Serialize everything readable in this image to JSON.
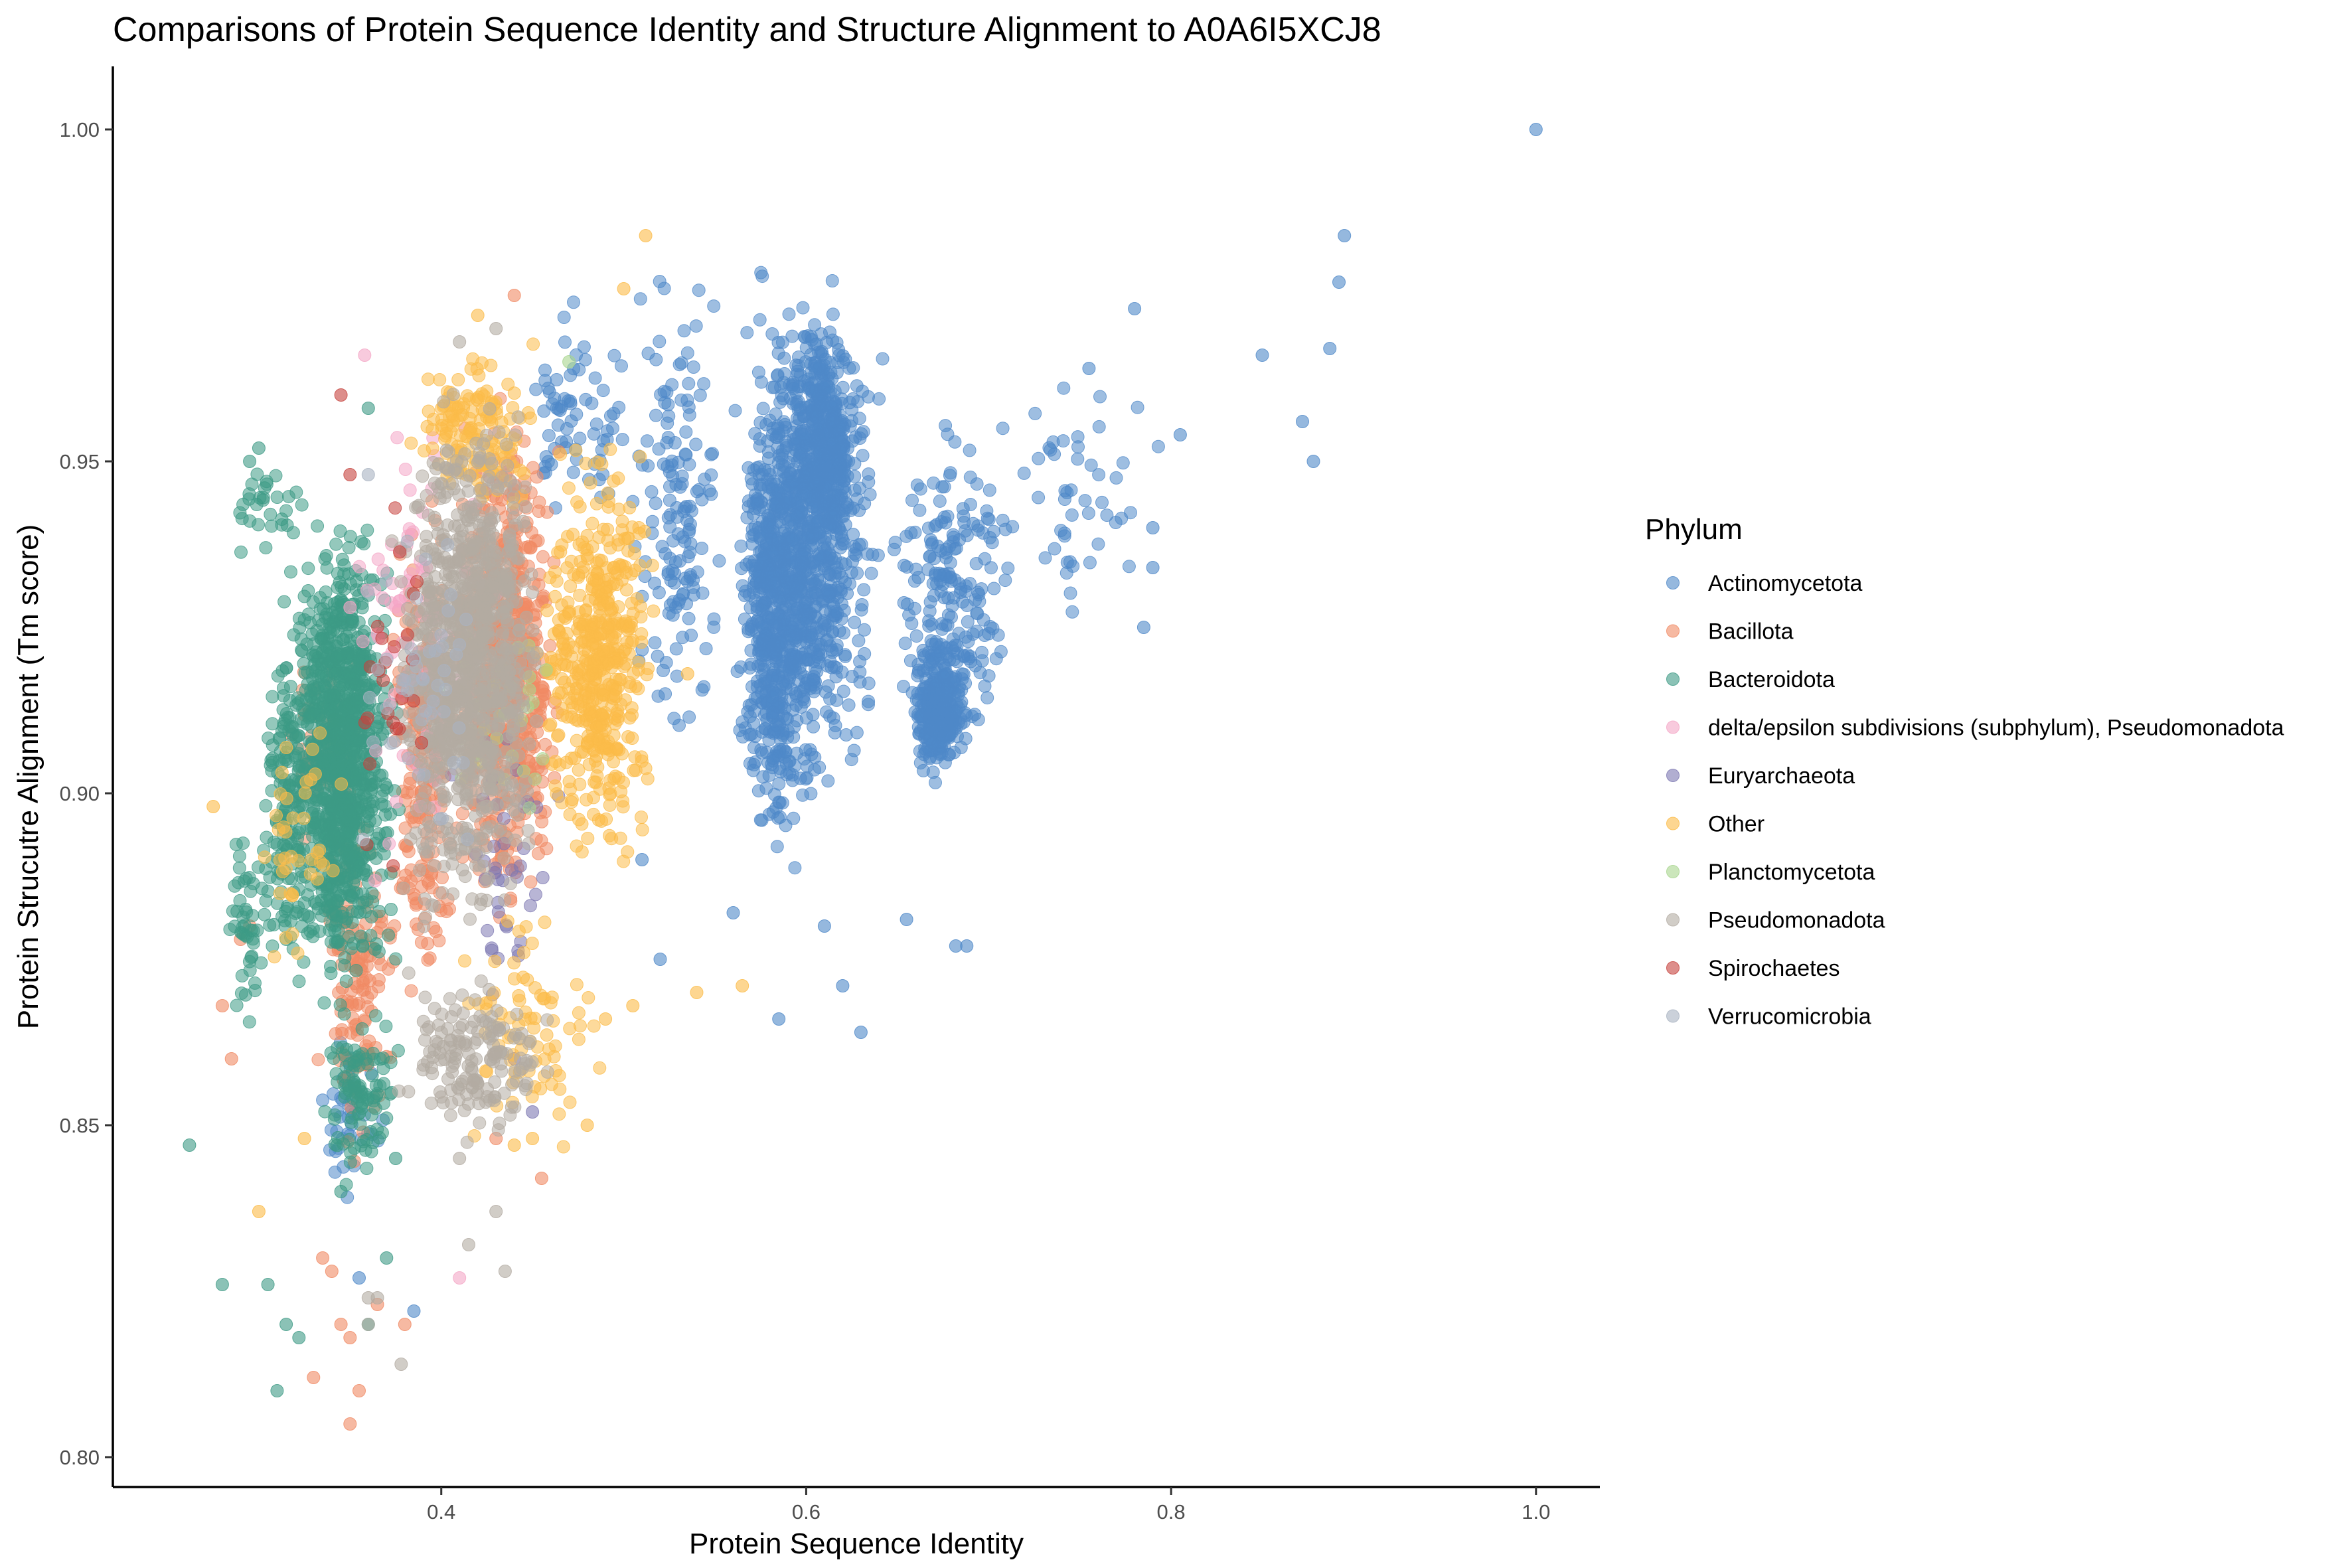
{
  "chart_data": {
    "type": "scatter",
    "title": "Comparisons of Protein Sequence Identity and Structure Alignment to A0A6I5XCJ8",
    "xlabel": "Protein Sequence Identity",
    "ylabel": "Protein Strucutre Alignment (Tm score)",
    "xlim": [
      0.22,
      1.035
    ],
    "ylim": [
      0.7955,
      1.0095
    ],
    "x_ticks": [
      {
        "value": 0.4,
        "label": "0.4"
      },
      {
        "value": 0.6,
        "label": "0.6"
      },
      {
        "value": 0.8,
        "label": "0.8"
      },
      {
        "value": 1.0,
        "label": "1.0"
      }
    ],
    "y_ticks": [
      {
        "value": 0.8,
        "label": "0.80"
      },
      {
        "value": 0.85,
        "label": "0.85"
      },
      {
        "value": 0.9,
        "label": "0.90"
      },
      {
        "value": 0.95,
        "label": "0.95"
      },
      {
        "value": 1.0,
        "label": "1.00"
      }
    ],
    "grid": false,
    "legend": {
      "title": "Phylum",
      "placement": "right"
    },
    "series": [
      {
        "name": "Actinomycetota",
        "color": "#4f88c8",
        "clusters": [
          {
            "x": [
              0.555,
              0.645
            ],
            "y": [
              0.89,
              0.985
            ],
            "n": 900
          },
          {
            "x": [
              0.56,
              0.6
            ],
            "y": [
              0.885,
              0.96
            ],
            "n": 350
          },
          {
            "x": [
              0.59,
              0.63
            ],
            "y": [
              0.93,
              0.975
            ],
            "n": 300
          },
          {
            "x": [
              0.655,
              0.69
            ],
            "y": [
              0.9,
              0.925
            ],
            "n": 300
          },
          {
            "x": [
              0.64,
              0.72
            ],
            "y": [
              0.9,
              0.96
            ],
            "n": 200
          },
          {
            "x": [
              0.5,
              0.56
            ],
            "y": [
              0.9,
              0.985
            ],
            "n": 150
          },
          {
            "x": [
              0.43,
              0.52
            ],
            "y": [
              0.94,
              0.975
            ],
            "n": 70
          },
          {
            "x": [
              0.33,
              0.37
            ],
            "y": [
              0.835,
              0.865
            ],
            "n": 40
          },
          {
            "x": [
              0.7,
              0.8
            ],
            "y": [
              0.92,
              0.97
            ],
            "n": 50
          }
        ],
        "points": [
          [
            1.0,
            1.0
          ],
          [
            0.895,
            0.984
          ],
          [
            0.892,
            0.977
          ],
          [
            0.887,
            0.967
          ],
          [
            0.85,
            0.966
          ],
          [
            0.872,
            0.956
          ],
          [
            0.878,
            0.95
          ],
          [
            0.805,
            0.954
          ],
          [
            0.78,
            0.973
          ],
          [
            0.755,
            0.964
          ],
          [
            0.79,
            0.94
          ],
          [
            0.79,
            0.934
          ],
          [
            0.785,
            0.925
          ],
          [
            0.682,
            0.877
          ],
          [
            0.688,
            0.877
          ],
          [
            0.63,
            0.864
          ],
          [
            0.62,
            0.871
          ],
          [
            0.585,
            0.866
          ],
          [
            0.56,
            0.882
          ],
          [
            0.61,
            0.88
          ],
          [
            0.655,
            0.881
          ],
          [
            0.52,
            0.875
          ],
          [
            0.51,
            0.89
          ],
          [
            0.385,
            0.822
          ],
          [
            0.355,
            0.827
          ]
        ]
      },
      {
        "name": "Bacillota",
        "color": "#f08a64",
        "clusters": [
          {
            "x": [
              0.4,
              0.47
            ],
            "y": [
              0.875,
              0.965
            ],
            "n": 700
          },
          {
            "x": [
              0.37,
              0.41
            ],
            "y": [
              0.86,
              0.95
            ],
            "n": 220
          },
          {
            "x": [
              0.33,
              0.38
            ],
            "y": [
              0.84,
              0.9
            ],
            "n": 140
          },
          {
            "x": [
              0.31,
              0.36
            ],
            "y": [
              0.89,
              0.925
            ],
            "n": 50
          }
        ],
        "points": [
          [
            0.35,
            0.805
          ],
          [
            0.355,
            0.81
          ],
          [
            0.33,
            0.812
          ],
          [
            0.35,
            0.818
          ],
          [
            0.365,
            0.823
          ],
          [
            0.345,
            0.82
          ],
          [
            0.38,
            0.82
          ],
          [
            0.335,
            0.83
          ],
          [
            0.34,
            0.828
          ],
          [
            0.44,
            0.975
          ],
          [
            0.455,
            0.842
          ],
          [
            0.43,
            0.848
          ],
          [
            0.285,
            0.86
          ],
          [
            0.28,
            0.868
          ],
          [
            0.29,
            0.878
          ],
          [
            0.295,
            0.88
          ]
        ]
      },
      {
        "name": "Bacteroidota",
        "color": "#3d9a85",
        "clusters": [
          {
            "x": [
              0.31,
              0.38
            ],
            "y": [
              0.865,
              0.945
            ],
            "n": 1100
          },
          {
            "x": [
              0.3,
              0.33
            ],
            "y": [
              0.87,
              0.93
            ],
            "n": 130
          },
          {
            "x": [
              0.28,
              0.31
            ],
            "y": [
              0.86,
              0.9
            ],
            "n": 50
          },
          {
            "x": [
              0.33,
              0.38
            ],
            "y": [
              0.84,
              0.87
            ],
            "n": 100
          },
          {
            "x": [
              0.28,
              0.33
            ],
            "y": [
              0.935,
              0.95
            ],
            "n": 30
          }
        ],
        "points": [
          [
            0.262,
            0.847
          ],
          [
            0.28,
            0.826
          ],
          [
            0.305,
            0.826
          ],
          [
            0.31,
            0.81
          ],
          [
            0.315,
            0.82
          ],
          [
            0.322,
            0.818
          ],
          [
            0.3,
            0.952
          ],
          [
            0.295,
            0.95
          ],
          [
            0.36,
            0.958
          ],
          [
            0.36,
            0.82
          ],
          [
            0.345,
            0.84
          ],
          [
            0.37,
            0.83
          ],
          [
            0.375,
            0.845
          ]
        ]
      },
      {
        "name": "delta/epsilon subdivisions (subphylum), Pseudomonadota",
        "color": "#f4a6c6",
        "clusters": [
          {
            "x": [
              0.35,
              0.43
            ],
            "y": [
              0.885,
              0.96
            ],
            "n": 90
          }
        ],
        "points": [
          [
            0.358,
            0.966
          ],
          [
            0.41,
            0.827
          ],
          [
            0.35,
            0.928
          ],
          [
            0.43,
            0.93
          ]
        ]
      },
      {
        "name": "Euryarchaeota",
        "color": "#7d78b2",
        "clusters": [
          {
            "x": [
              0.4,
              0.47
            ],
            "y": [
              0.86,
              0.92
            ],
            "n": 40
          }
        ],
        "points": [
          [
            0.45,
            0.852
          ],
          [
            0.44,
            0.86
          ]
        ]
      },
      {
        "name": "Other",
        "color": "#fbbb48",
        "clusters": [
          {
            "x": [
              0.45,
              0.52
            ],
            "y": [
              0.885,
              0.955
            ],
            "n": 500
          },
          {
            "x": [
              0.38,
              0.46
            ],
            "y": [
              0.94,
              0.97
            ],
            "n": 150
          },
          {
            "x": [
              0.4,
              0.5
            ],
            "y": [
              0.845,
              0.885
            ],
            "n": 80
          },
          {
            "x": [
              0.29,
              0.35
            ],
            "y": [
              0.86,
              0.92
            ],
            "n": 40
          }
        ],
        "points": [
          [
            0.512,
            0.984
          ],
          [
            0.5,
            0.976
          ],
          [
            0.42,
            0.972
          ],
          [
            0.275,
            0.898
          ],
          [
            0.3,
            0.837
          ],
          [
            0.54,
            0.87
          ],
          [
            0.565,
            0.871
          ],
          [
            0.45,
            0.848
          ],
          [
            0.48,
            0.85
          ],
          [
            0.49,
            0.866
          ],
          [
            0.505,
            0.868
          ],
          [
            0.44,
            0.847
          ],
          [
            0.535,
            0.918
          ],
          [
            0.325,
            0.848
          ]
        ]
      },
      {
        "name": "Planctomycetota",
        "color": "#a8d58e",
        "clusters": [
          {
            "x": [
              0.39,
              0.47
            ],
            "y": [
              0.885,
              0.94
            ],
            "n": 35
          }
        ],
        "points": [
          [
            0.47,
            0.965
          ]
        ]
      },
      {
        "name": "Pseudomonadota",
        "color": "#b3aba2",
        "clusters": [
          {
            "x": [
              0.37,
              0.46
            ],
            "y": [
              0.875,
              0.965
            ],
            "n": 1000
          },
          {
            "x": [
              0.37,
              0.47
            ],
            "y": [
              0.845,
              0.875
            ],
            "n": 160
          }
        ],
        "points": [
          [
            0.378,
            0.814
          ],
          [
            0.36,
            0.82
          ],
          [
            0.36,
            0.824
          ],
          [
            0.365,
            0.824
          ],
          [
            0.415,
            0.832
          ],
          [
            0.43,
            0.837
          ],
          [
            0.435,
            0.828
          ],
          [
            0.41,
            0.845
          ],
          [
            0.43,
            0.97
          ],
          [
            0.41,
            0.968
          ]
        ]
      },
      {
        "name": "Spirochaetes",
        "color": "#c6423d",
        "clusters": [
          {
            "x": [
              0.34,
              0.4
            ],
            "y": [
              0.88,
              0.95
            ],
            "n": 25
          }
        ],
        "points": [
          [
            0.345,
            0.96
          ],
          [
            0.35,
            0.948
          ]
        ]
      },
      {
        "name": "Verrucomicrobia",
        "color": "#a9b3c1",
        "clusters": [
          {
            "x": [
              0.35,
              0.43
            ],
            "y": [
              0.88,
              0.95
            ],
            "n": 50
          }
        ],
        "points": [
          [
            0.36,
            0.948
          ]
        ]
      }
    ]
  }
}
